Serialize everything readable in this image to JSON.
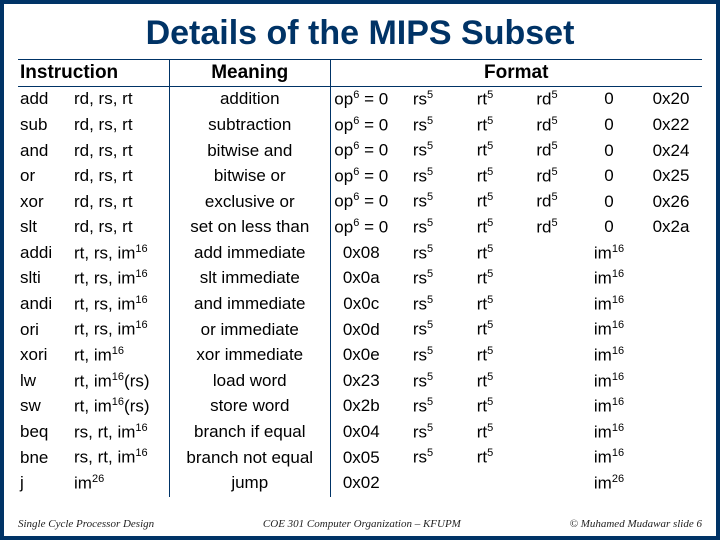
{
  "title": "Details of the MIPS Subset",
  "header": {
    "instruction": "Instruction",
    "meaning": "Meaning",
    "format": "Format"
  },
  "colors": {
    "border": "#003366",
    "title": "#003366",
    "bg": "#ffffff"
  },
  "rows": [
    {
      "m": "add",
      "ops": "rd, rs, rt",
      "mean": "addition",
      "f": [
        "op<sup>6</sup> = 0",
        "rs<sup>5</sup>",
        "rt<sup>5</sup>",
        "rd<sup>5</sup>",
        "0",
        "0x20"
      ]
    },
    {
      "m": "sub",
      "ops": "rd, rs, rt",
      "mean": "subtraction",
      "f": [
        "op<sup>6</sup> = 0",
        "rs<sup>5</sup>",
        "rt<sup>5</sup>",
        "rd<sup>5</sup>",
        "0",
        "0x22"
      ]
    },
    {
      "m": "and",
      "ops": "rd, rs, rt",
      "mean": "bitwise and",
      "f": [
        "op<sup>6</sup> = 0",
        "rs<sup>5</sup>",
        "rt<sup>5</sup>",
        "rd<sup>5</sup>",
        "0",
        "0x24"
      ]
    },
    {
      "m": "or",
      "ops": "rd, rs, rt",
      "mean": "bitwise or",
      "f": [
        "op<sup>6</sup> = 0",
        "rs<sup>5</sup>",
        "rt<sup>5</sup>",
        "rd<sup>5</sup>",
        "0",
        "0x25"
      ]
    },
    {
      "m": "xor",
      "ops": "rd, rs, rt",
      "mean": "exclusive or",
      "f": [
        "op<sup>6</sup> = 0",
        "rs<sup>5</sup>",
        "rt<sup>5</sup>",
        "rd<sup>5</sup>",
        "0",
        "0x26"
      ]
    },
    {
      "m": "slt",
      "ops": "rd, rs, rt",
      "mean": "set on less than",
      "f": [
        "op<sup>6</sup> = 0",
        "rs<sup>5</sup>",
        "rt<sup>5</sup>",
        "rd<sup>5</sup>",
        "0",
        "0x2a"
      ]
    },
    {
      "m": "addi",
      "ops": "rt, rs, im<sup>16</sup>",
      "mean": "add immediate",
      "f": [
        "0x08",
        "rs<sup>5</sup>",
        "rt<sup>5</sup>",
        "",
        "im<sup>16</sup>",
        ""
      ]
    },
    {
      "m": "slti",
      "ops": "rt, rs, im<sup>16</sup>",
      "mean": "slt immediate",
      "f": [
        "0x0a",
        "rs<sup>5</sup>",
        "rt<sup>5</sup>",
        "",
        "im<sup>16</sup>",
        ""
      ]
    },
    {
      "m": "andi",
      "ops": "rt, rs, im<sup>16</sup>",
      "mean": "and immediate",
      "f": [
        "0x0c",
        "rs<sup>5</sup>",
        "rt<sup>5</sup>",
        "",
        "im<sup>16</sup>",
        ""
      ]
    },
    {
      "m": "ori",
      "ops": "rt, rs, im<sup>16</sup>",
      "mean": "or immediate",
      "f": [
        "0x0d",
        "rs<sup>5</sup>",
        "rt<sup>5</sup>",
        "",
        "im<sup>16</sup>",
        ""
      ]
    },
    {
      "m": "xori",
      "ops": "rt, im<sup>16</sup>",
      "mean": "xor immediate",
      "f": [
        "0x0e",
        "rs<sup>5</sup>",
        "rt<sup>5</sup>",
        "",
        "im<sup>16</sup>",
        ""
      ]
    },
    {
      "m": "lw",
      "ops": "rt, im<sup>16</sup>(rs)",
      "mean": "load word",
      "f": [
        "0x23",
        "rs<sup>5</sup>",
        "rt<sup>5</sup>",
        "",
        "im<sup>16</sup>",
        ""
      ]
    },
    {
      "m": "sw",
      "ops": "rt, im<sup>16</sup>(rs)",
      "mean": "store word",
      "f": [
        "0x2b",
        "rs<sup>5</sup>",
        "rt<sup>5</sup>",
        "",
        "im<sup>16</sup>",
        ""
      ]
    },
    {
      "m": "beq",
      "ops": "rs, rt, im<sup>16</sup>",
      "mean": "branch if equal",
      "f": [
        "0x04",
        "rs<sup>5</sup>",
        "rt<sup>5</sup>",
        "",
        "im<sup>16</sup>",
        ""
      ]
    },
    {
      "m": "bne",
      "ops": "rs, rt, im<sup>16</sup>",
      "mean": "branch not equal",
      "f": [
        "0x05",
        "rs<sup>5</sup>",
        "rt<sup>5</sup>",
        "",
        "im<sup>16</sup>",
        ""
      ]
    },
    {
      "m": "j",
      "ops": "im<sup>26</sup>",
      "mean": "jump",
      "f": [
        "0x02",
        "",
        "",
        "",
        "im<sup>26</sup>",
        ""
      ]
    }
  ],
  "footer": {
    "left": "Single Cycle Processor Design",
    "center": "COE 301 Computer Organization – KFUPM",
    "right": "© Muhamed Mudawar  slide 6"
  }
}
